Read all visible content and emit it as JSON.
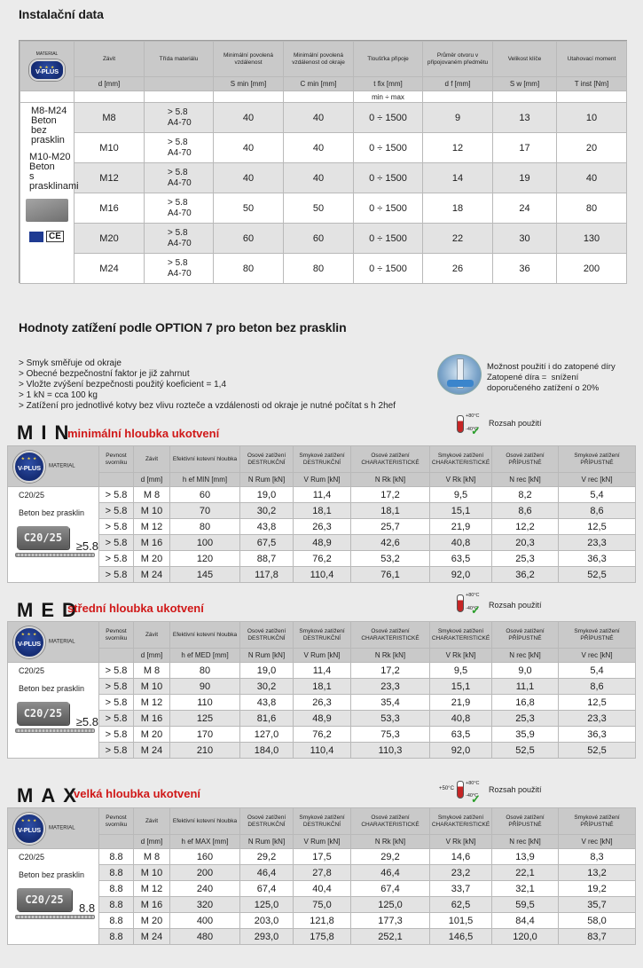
{
  "install": {
    "title": "Instalační data",
    "badge": "V-PLUS",
    "headers": [
      "MATERIAL",
      "Závit",
      "Třída materiálu",
      "Minimální povolená vzdálenost",
      "Minimální povolená vzdálenost od okraje",
      "Tloušťka připoje",
      "Průměr otvoru v připojovaném předmětu",
      "Velikost klíče",
      "Utahovací moment"
    ],
    "units": [
      "d [mm]",
      "",
      "S min [mm]",
      "C min [mm]",
      "t fix [mm]",
      "d f [mm]",
      "S w [mm]",
      "T inst [Nm]"
    ],
    "range_label": "min ÷ max",
    "left_text_1": "M8-M24\nBeton\nbez\nprasklin",
    "left_text_2": "M10-M20\nBeton\ns\nprasklinami",
    "ce_label": "CE",
    "rows": [
      [
        "M8",
        "> 5.8\nA4-70",
        "40",
        "40",
        "0 ÷ 1500",
        "9",
        "13",
        "10"
      ],
      [
        "M10",
        "> 5.8\nA4-70",
        "40",
        "40",
        "0 ÷ 1500",
        "12",
        "17",
        "20"
      ],
      [
        "M12",
        "> 5.8\nA4-70",
        "40",
        "40",
        "0 ÷ 1500",
        "14",
        "19",
        "40"
      ],
      [
        "M16",
        "> 5.8\nA4-70",
        "50",
        "50",
        "0 ÷ 1500",
        "18",
        "24",
        "80"
      ],
      [
        "M20",
        "> 5.8\nA4-70",
        "60",
        "60",
        "0 ÷ 1500",
        "22",
        "30",
        "130"
      ],
      [
        "M24",
        "> 5.8\nA4-70",
        "80",
        "80",
        "0 ÷ 1500",
        "26",
        "36",
        "200"
      ]
    ]
  },
  "loads": {
    "title": "Hodnoty zatížení podle OPTION  7 pro beton bez prasklin",
    "notes": "> Smyk směřuje od okraje\n> Obecné bezpečnostní faktor je již zahrnut\n> Vložte zvýšení bezpečnosti použitý koeficient = 1,4\n> 1 kN = cca 100 kg\n> Zatížení pro jednotlivé kotvy bez vlivu rozteče a vzdálenosti od okraje je nutné počítat s h 2hef",
    "flood_note": "Možnost použití i do zatopené díry\nZatopené díra =  snížení\ndoporučeného zatížení o 20%",
    "range_use": "Rozsah použití",
    "temp_hi": "+80°C",
    "temp_lo": "-40°C",
    "temp_extra": "+50°C",
    "concrete_label": "C20/25",
    "beton_label": "Beton bez prasklin",
    "headers": [
      "MATERIAL",
      "Pevnost svorníku",
      "Závit",
      "Efektivní kotevní hloubka",
      "Osové zatížení DESTRUKČNÍ",
      "Smykové zatížení DESTRUKČNÍ",
      "Osové zatížení CHARAKTERISTICKÉ",
      "Smykové zatížení CHARAKTERISTICKÉ",
      "Osové zatížení PŘÍPUSTNÉ",
      "Smykové zatížení PŘÍPUSTNÉ"
    ],
    "units_min": [
      "d [mm]",
      "h ef MIN [mm]",
      "N Rum [kN]",
      "V Rum [kN]",
      "N Rk [kN]",
      "V Rk [kN]",
      "N rec [kN]",
      "V rec [kN]"
    ],
    "units_med": [
      "d [mm]",
      "h ef MED [mm]",
      "N Rum [kN]",
      "V Rum [kN]",
      "N Rk [kN]",
      "V Rk [kN]",
      "N rec [kN]",
      "V rec [kN]"
    ],
    "units_max": [
      "d [mm]",
      "h ef MAX [mm]",
      "N Rum [kN]",
      "V Rum [kN]",
      "N Rk [kN]",
      "V Rk [kN]",
      "N rec [kN]",
      "V rec [kN]"
    ],
    "min": {
      "code": "MIN",
      "name": "minimální hloubka ukotvení",
      "strength": "≥5.8",
      "rows": [
        [
          "> 5.8",
          "M 8",
          "60",
          "19,0",
          "11,4",
          "17,2",
          "9,5",
          "8,2",
          "5,4"
        ],
        [
          "> 5.8",
          "M 10",
          "70",
          "30,2",
          "18,1",
          "18,1",
          "15,1",
          "8,6",
          "8,6"
        ],
        [
          "> 5.8",
          "M 12",
          "80",
          "43,8",
          "26,3",
          "25,7",
          "21,9",
          "12,2",
          "12,5"
        ],
        [
          "> 5.8",
          "M 16",
          "100",
          "67,5",
          "48,9",
          "42,6",
          "40,8",
          "20,3",
          "23,3"
        ],
        [
          "> 5.8",
          "M 20",
          "120",
          "88,7",
          "76,2",
          "53,2",
          "63,5",
          "25,3",
          "36,3"
        ],
        [
          "> 5.8",
          "M 24",
          "145",
          "117,8",
          "110,4",
          "76,1",
          "92,0",
          "36,2",
          "52,5"
        ]
      ]
    },
    "med": {
      "code": "MED",
      "name": "střední hloubka ukotvení",
      "strength": "≥5.8",
      "rows": [
        [
          "> 5.8",
          "M 8",
          "80",
          "19,0",
          "11,4",
          "17,2",
          "9,5",
          "9,0",
          "5,4"
        ],
        [
          "> 5.8",
          "M 10",
          "90",
          "30,2",
          "18,1",
          "23,3",
          "15,1",
          "11,1",
          "8,6"
        ],
        [
          "> 5.8",
          "M 12",
          "110",
          "43,8",
          "26,3",
          "35,4",
          "21,9",
          "16,8",
          "12,5"
        ],
        [
          "> 5.8",
          "M 16",
          "125",
          "81,6",
          "48,9",
          "53,3",
          "40,8",
          "25,3",
          "23,3"
        ],
        [
          "> 5.8",
          "M 20",
          "170",
          "127,0",
          "76,2",
          "75,3",
          "63,5",
          "35,9",
          "36,3"
        ],
        [
          "> 5.8",
          "M 24",
          "210",
          "184,0",
          "110,4",
          "110,3",
          "92,0",
          "52,5",
          "52,5"
        ]
      ]
    },
    "max": {
      "code": "MAX",
      "name": "velká hloubka ukotvení",
      "strength": "8.8",
      "rows": [
        [
          "8.8",
          "M 8",
          "160",
          "29,2",
          "17,5",
          "29,2",
          "14,6",
          "13,9",
          "8,3"
        ],
        [
          "8.8",
          "M 10",
          "200",
          "46,4",
          "27,8",
          "46,4",
          "23,2",
          "22,1",
          "13,2"
        ],
        [
          "8.8",
          "M 12",
          "240",
          "67,4",
          "40,4",
          "67,4",
          "33,7",
          "32,1",
          "19,2"
        ],
        [
          "8.8",
          "M 16",
          "320",
          "125,0",
          "75,0",
          "125,0",
          "62,5",
          "59,5",
          "35,7"
        ],
        [
          "8.8",
          "M 20",
          "400",
          "203,0",
          "121,8",
          "177,3",
          "101,5",
          "84,4",
          "58,0"
        ],
        [
          "8.8",
          "M 24",
          "480",
          "293,0",
          "175,8",
          "252,1",
          "146,5",
          "120,0",
          "83,7"
        ]
      ]
    }
  }
}
